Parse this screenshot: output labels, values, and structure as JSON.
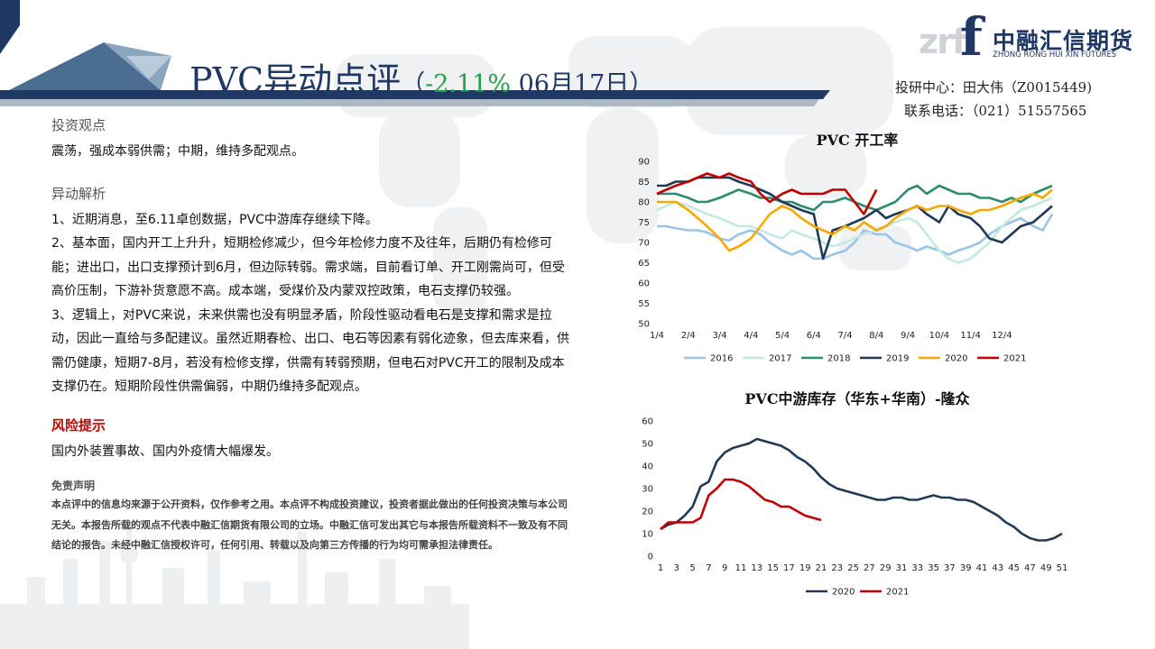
{
  "header": {
    "title_main": "PVC异动点评",
    "title_open": "（",
    "title_change": "-2.11%",
    "title_date": " 06月17日）"
  },
  "logo": {
    "mark": "f",
    "watermark": "zrf",
    "name_cn": "中融汇信期货",
    "name_en": "ZHONG RONG HUI XIN FUTURES"
  },
  "contact": {
    "researcher": "投研中心：田大伟（Z0015449)",
    "phone": "联系电话：（021）51557565"
  },
  "sections": {
    "view_title": "投资观点",
    "view_text": "震荡，强成本弱供需；中期，维持多配观点。",
    "analysis_title": "异动解析",
    "analysis_1": "1、近期消息，至6.11卓创数据，PVC中游库存继续下降。",
    "analysis_2": "2、基本面，国内开工上升升，短期检修减少，但今年检修力度不及往年，后期仍有检修可能；进出口，出口支撑预计到6月，但边际转弱。需求端，目前看订单、开工刚需尚可，但受高价压制，下游补货意愿不高。成本端，受煤价及内蒙双控政策，电石支撑仍较强。",
    "analysis_3": "3、逻辑上，对PVC来说，未来供需也没有明显矛盾，阶段性驱动看电石是支撑和需求是拉动，因此一直给与多配建议。虽然近期春检、出口、电石等因素有弱化迹象，但去库来看，供需仍健康，短期7-8月，若没有检修支撑，供需有转弱预期，但电石对PVC开工的限制及成本支撑仍在。短期阶段性供需偏弱，中期仍维持多配观点。",
    "risk_title": "风险提示",
    "risk_text": "国内外装置事故、国内外疫情大幅爆发。",
    "disclaimer_title": "免责声明",
    "disclaimer_text": "本点评中的信息均来源于公开资料，仅作参考之用。本点评不构成投资建议，投资者据此做出的任何投资决策与本公司无关。本报告所载的观点不代表中融汇信期货有限公司的立场。中融汇信可发出其它与本报告所载资料不一致及有不同结论的报告。未经中融汇信授权许可，任何引用、转载以及向第三方传播的行为均可需承担法律责任。"
  },
  "colors": {
    "brand_navy": "#1f3864",
    "change_green": "#22a04a",
    "risk_red": "#c00000",
    "s2016": "#9dc3e6",
    "s2017": "#c5e8e4",
    "s2018": "#2e8b6e",
    "s2019": "#203a55",
    "s2020": "#f5a800",
    "s2021": "#c00000"
  },
  "chart_data": [
    {
      "type": "line",
      "title": "PVC 开工率",
      "ylim": [
        50,
        90
      ],
      "yticks": [
        "50",
        "55",
        "60",
        "65",
        "70",
        "75",
        "80",
        "85",
        "90"
      ],
      "xticks": [
        "1/4",
        "2/4",
        "3/4",
        "4/4",
        "5/4",
        "6/4",
        "7/4",
        "8/4",
        "9/4",
        "10/4",
        "11/4",
        "12/4"
      ],
      "xrange": [
        0,
        12.6
      ],
      "legend": "bottom",
      "series": [
        {
          "name": "2016",
          "color": "#9dc3e6",
          "x": [
            0,
            0.3,
            0.6,
            1,
            1.3,
            1.6,
            2,
            2.3,
            2.6,
            3,
            3.3,
            3.6,
            4,
            4.3,
            4.6,
            5,
            5.3,
            5.6,
            6,
            6.3,
            6.6,
            7,
            7.3,
            7.6,
            8,
            8.3,
            8.6,
            9,
            9.3,
            9.6,
            10,
            10.3,
            10.6,
            11,
            11.3,
            11.6,
            12,
            12.3,
            12.6
          ],
          "values": [
            74,
            74,
            73.5,
            73,
            73,
            72.5,
            71,
            70.5,
            72,
            73,
            72,
            70,
            68,
            67,
            68,
            66,
            66,
            67,
            68,
            70,
            73,
            72,
            72,
            70,
            69,
            68,
            69,
            68,
            67,
            68,
            69,
            70,
            72,
            74,
            75,
            76,
            74,
            73,
            77
          ]
        },
        {
          "name": "2017",
          "color": "#c5e8e4",
          "x": [
            0,
            0.3,
            0.6,
            1,
            1.3,
            1.6,
            2,
            2.3,
            2.6,
            3,
            3.3,
            3.6,
            4,
            4.3,
            4.6,
            5,
            5.3,
            5.6,
            6,
            6.3,
            6.6,
            7,
            7.3,
            7.6,
            8,
            8.3,
            8.6,
            9,
            9.3,
            9.6,
            10,
            10.3,
            10.6,
            11,
            11.3,
            11.6,
            12,
            12.3,
            12.6
          ],
          "values": [
            78,
            79,
            80,
            79,
            78,
            77,
            76,
            75,
            74,
            74,
            73,
            72,
            71,
            73,
            72,
            71,
            70,
            69,
            70,
            71,
            72,
            73,
            74,
            75,
            76,
            75,
            72,
            68,
            66,
            65,
            66,
            68,
            70,
            74,
            76,
            78,
            79,
            80,
            81
          ]
        },
        {
          "name": "2018",
          "color": "#2e8b6e",
          "x": [
            0,
            0.3,
            0.6,
            1,
            1.3,
            1.6,
            2,
            2.3,
            2.6,
            3,
            3.3,
            3.6,
            4,
            4.3,
            4.6,
            5,
            5.3,
            5.6,
            6,
            6.3,
            6.6,
            7,
            7.3,
            7.6,
            8,
            8.3,
            8.6,
            9,
            9.3,
            9.6,
            10,
            10.3,
            10.6,
            11,
            11.3,
            11.6,
            12,
            12.3,
            12.6
          ],
          "values": [
            82,
            82,
            82,
            81,
            80,
            80,
            81,
            82,
            83,
            82,
            81,
            81,
            80,
            80,
            79,
            78,
            80,
            80,
            81,
            80,
            79,
            78,
            79,
            80,
            83,
            84,
            82,
            84,
            83,
            82,
            82,
            81,
            81,
            80,
            81,
            80,
            82,
            83,
            84
          ]
        },
        {
          "name": "2019",
          "color": "#203a55",
          "x": [
            0,
            0.3,
            0.6,
            1,
            1.3,
            1.6,
            2,
            2.3,
            2.6,
            3,
            3.3,
            3.6,
            4,
            4.3,
            4.6,
            5,
            5.3,
            5.6,
            6,
            6.3,
            6.6,
            7,
            7.3,
            7.6,
            8,
            8.3,
            8.6,
            9,
            9.3,
            9.6,
            10,
            10.3,
            10.6,
            11,
            11.3,
            11.6,
            12,
            12.3,
            12.6
          ],
          "values": [
            84,
            84,
            85,
            85,
            86,
            86,
            86,
            86,
            85,
            84,
            83,
            82,
            80,
            79,
            78,
            77,
            66,
            73,
            74,
            75,
            76,
            78,
            76,
            77,
            78,
            79,
            77,
            75,
            79,
            77,
            76,
            74,
            71,
            70,
            72,
            74,
            75,
            77,
            79
          ]
        },
        {
          "name": "2020",
          "color": "#f5a800",
          "x": [
            0,
            0.3,
            0.6,
            1,
            1.3,
            1.6,
            2,
            2.3,
            2.6,
            3,
            3.3,
            3.6,
            4,
            4.3,
            4.6,
            5,
            5.3,
            5.6,
            6,
            6.3,
            6.6,
            7,
            7.3,
            7.6,
            8,
            8.3,
            8.6,
            9,
            9.3,
            9.6,
            10,
            10.3,
            10.6,
            11,
            11.3,
            11.6,
            12,
            12.3,
            12.6
          ],
          "values": [
            80,
            80,
            80,
            78,
            76,
            74,
            71,
            68,
            69,
            71,
            74,
            77,
            79,
            78,
            76,
            74,
            73,
            72,
            74,
            73,
            75,
            73,
            74,
            76,
            78,
            79,
            78,
            79,
            79,
            78,
            77,
            78,
            78,
            79,
            80,
            81,
            82,
            81,
            83
          ]
        },
        {
          "name": "2021",
          "color": "#c00000",
          "x": [
            0,
            0.3,
            0.6,
            1,
            1.3,
            1.6,
            2,
            2.3,
            2.6,
            3,
            3.3,
            3.6,
            4,
            4.3,
            4.6,
            5,
            5.3,
            5.6,
            6,
            6.3,
            6.6,
            7
          ],
          "values": [
            82,
            83,
            84,
            85,
            86,
            87,
            86,
            87,
            86,
            85,
            82,
            80,
            82,
            83,
            82,
            82,
            82,
            83,
            83,
            80,
            77,
            83
          ]
        }
      ]
    },
    {
      "type": "line",
      "title": "PVC中游库存（华东+华南）-隆众",
      "ylim": [
        0,
        60
      ],
      "yticks": [
        "0",
        "10",
        "20",
        "30",
        "40",
        "50",
        "60"
      ],
      "xticks": [
        "1",
        "3",
        "5",
        "7",
        "9",
        "11",
        "13",
        "15",
        "17",
        "19",
        "21",
        "23",
        "25",
        "27",
        "29",
        "31",
        "33",
        "35",
        "37",
        "39",
        "41",
        "43",
        "45",
        "47",
        "49",
        "51"
      ],
      "xrange": [
        1,
        51
      ],
      "legend": "bottom",
      "series": [
        {
          "name": "2020",
          "color": "#203a55",
          "x": [
            1,
            2,
            3,
            4,
            5,
            6,
            7,
            8,
            9,
            10,
            11,
            12,
            13,
            14,
            15,
            16,
            17,
            18,
            19,
            20,
            21,
            22,
            23,
            24,
            25,
            26,
            27,
            28,
            29,
            30,
            31,
            32,
            33,
            34,
            35,
            36,
            37,
            38,
            39,
            40,
            41,
            42,
            43,
            44,
            45,
            46,
            47,
            48,
            49,
            50,
            51
          ],
          "values": [
            12,
            14,
            15,
            18,
            22,
            31,
            33,
            42,
            46,
            48,
            49,
            50,
            52,
            51,
            50,
            49,
            47,
            44,
            42,
            39,
            35,
            32,
            30,
            29,
            28,
            27,
            26,
            25,
            25,
            26,
            26,
            25,
            25,
            26,
            27,
            26,
            26,
            25,
            25,
            24,
            22,
            20,
            18,
            15,
            13,
            10,
            8,
            7,
            7,
            8,
            10
          ]
        },
        {
          "name": "2021",
          "color": "#c00000",
          "x": [
            1,
            2,
            3,
            4,
            5,
            6,
            7,
            8,
            9,
            10,
            11,
            12,
            13,
            14,
            15,
            16,
            17,
            18,
            19,
            20,
            21
          ],
          "values": [
            12,
            15,
            15,
            15,
            15,
            17,
            27,
            30,
            34,
            34,
            33,
            31,
            28,
            25,
            24,
            22,
            22,
            20,
            18,
            17,
            16
          ]
        }
      ]
    }
  ]
}
